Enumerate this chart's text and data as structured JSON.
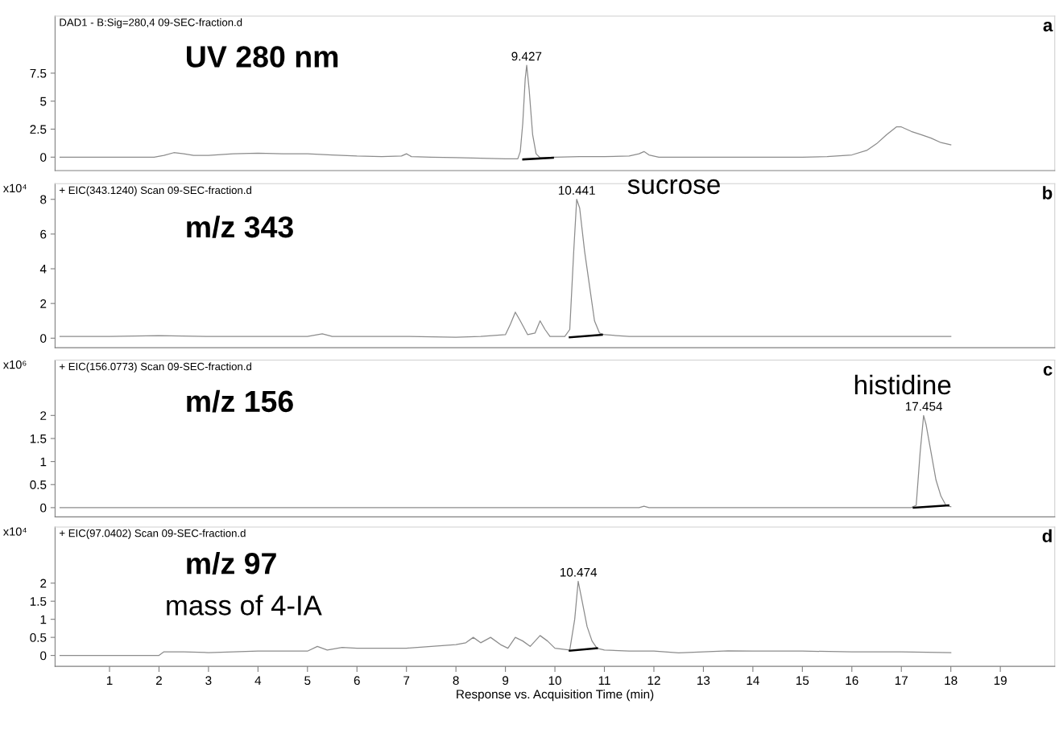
{
  "chart_data": [
    {
      "type": "line",
      "title": "DAD1 - B:Sig=280,4 09-SEC-fraction.d",
      "tick_labels": "y",
      "xlim": [
        -0.1,
        20.1
      ],
      "ylim": [
        -1.2,
        12.6
      ],
      "yticks": [
        0,
        2.5,
        5,
        7.5
      ],
      "grid": false,
      "series": [
        {
          "color": "#8c8c8c",
          "x": [
            0,
            1.9,
            2.1,
            2.3,
            2.5,
            2.7,
            3.0,
            3.5,
            4.0,
            4.5,
            5.0,
            5.5,
            6.0,
            6.5,
            6.9,
            7.0,
            7.1,
            7.5,
            8.0,
            8.5,
            9.0,
            9.25,
            9.3,
            9.35,
            9.4,
            9.43,
            9.48,
            9.55,
            9.62,
            9.7,
            9.8,
            10.0,
            10.5,
            11.0,
            11.5,
            11.7,
            11.8,
            11.9,
            12.1,
            12.5,
            13,
            14,
            15,
            15.5,
            16,
            16.3,
            16.5,
            16.7,
            16.9,
            17.0,
            17.2,
            17.4,
            17.6,
            17.8,
            18.0
          ],
          "values": [
            0,
            0,
            0.15,
            0.4,
            0.3,
            0.15,
            0.15,
            0.3,
            0.35,
            0.3,
            0.3,
            0.2,
            0.1,
            0.05,
            0.1,
            0.3,
            0.05,
            0.0,
            -0.05,
            -0.1,
            -0.15,
            -0.15,
            0.5,
            3,
            7,
            8.2,
            6,
            2,
            0.3,
            -0.05,
            -0.05,
            0,
            0.05,
            0.05,
            0.1,
            0.3,
            0.5,
            0.2,
            0,
            0,
            0,
            0,
            0,
            0.05,
            0.2,
            0.6,
            1.2,
            2.0,
            2.7,
            2.7,
            2.3,
            2.0,
            1.7,
            1.3,
            1.1
          ]
        },
        {
          "color": "#000000",
          "x": [
            9.36,
            9.96
          ],
          "values": [
            -0.2,
            -0.05
          ]
        }
      ],
      "annotations": [
        "UV 280 nm",
        {
          "text": "9.427",
          "x": 9.427,
          "y": 8.2
        },
        "a"
      ]
    },
    {
      "type": "line",
      "title": "+ EIC(343.1240) Scan 09-SEC-fraction.d",
      "ylabel": "x10⁴",
      "tick_labels": "y",
      "xlim": [
        -0.1,
        20.1
      ],
      "ylim": [
        -0.55,
        8.9
      ],
      "yticks": [
        0,
        2,
        4,
        6,
        8
      ],
      "grid": false,
      "series": [
        {
          "color": "#8c8c8c",
          "x": [
            0,
            1,
            2,
            3,
            4,
            5,
            5.3,
            5.5,
            6,
            7,
            8,
            8.5,
            9.0,
            9.1,
            9.2,
            9.3,
            9.45,
            9.6,
            9.7,
            9.8,
            9.9,
            10.2,
            10.3,
            10.38,
            10.44,
            10.5,
            10.6,
            10.7,
            10.8,
            10.9,
            11.0,
            11.5,
            12,
            13,
            14,
            15,
            16,
            17,
            18
          ],
          "values": [
            0.1,
            0.1,
            0.15,
            0.1,
            0.1,
            0.1,
            0.25,
            0.1,
            0.1,
            0.1,
            0.05,
            0.1,
            0.2,
            0.8,
            1.5,
            1.0,
            0.2,
            0.3,
            1.0,
            0.5,
            0.1,
            0.1,
            0.5,
            5,
            8.0,
            7.5,
            5,
            3,
            1.0,
            0.3,
            0.2,
            0.1,
            0.1,
            0.1,
            0.1,
            0.1,
            0.1,
            0.1,
            0.1
          ]
        },
        {
          "color": "#000000",
          "x": [
            10.3,
            10.95
          ],
          "values": [
            0.05,
            0.2
          ]
        }
      ],
      "annotations": [
        "m/z 343",
        {
          "text": "10.441",
          "x": 10.441,
          "y": 8.0
        },
        "sucrose",
        "b"
      ]
    },
    {
      "type": "line",
      "title": "+ EIC(156.0773) Scan 09-SEC-fraction.d",
      "ylabel": "x10⁶",
      "tick_labels": "y",
      "xlim": [
        -0.1,
        20.1
      ],
      "ylim": [
        -0.2,
        3.2
      ],
      "yticks": [
        0,
        0.5,
        1,
        1.5,
        2
      ],
      "grid": false,
      "series": [
        {
          "color": "#8c8c8c",
          "x": [
            0,
            5,
            10,
            11.7,
            11.8,
            11.9,
            15,
            17.2,
            17.3,
            17.38,
            17.45,
            17.5,
            17.6,
            17.7,
            17.8,
            17.9,
            18
          ],
          "values": [
            0,
            0,
            0,
            0,
            0.03,
            0,
            0,
            0,
            0.05,
            1.2,
            2.0,
            1.8,
            1.2,
            0.6,
            0.25,
            0.05,
            0.02
          ]
        },
        {
          "color": "#000000",
          "x": [
            17.25,
            17.95
          ],
          "values": [
            0.0,
            0.05
          ]
        }
      ],
      "annotations": [
        "m/z 156",
        {
          "text": "17.454",
          "x": 17.454,
          "y": 2.0
        },
        "histidine",
        "c"
      ]
    },
    {
      "type": "line",
      "title": "+ EIC(97.0402) Scan 09-SEC-fraction.d",
      "ylabel": "x10⁴",
      "xlabel": "Response vs. Acquisition Time (min)",
      "xlim": [
        -0.1,
        20.1
      ],
      "ylim": [
        -0.3,
        3.55
      ],
      "xticks": [
        1,
        2,
        3,
        4,
        5,
        6,
        7,
        8,
        9,
        10,
        11,
        12,
        13,
        14,
        15,
        16,
        17,
        18,
        19
      ],
      "yticks": [
        0,
        0.5,
        1,
        1.5,
        2
      ],
      "grid": false,
      "series": [
        {
          "color": "#8c8c8c",
          "x": [
            0,
            2.0,
            2.1,
            2.5,
            3,
            3.5,
            4,
            4.5,
            5,
            5.2,
            5.4,
            5.7,
            6,
            6.5,
            7,
            7.5,
            8,
            8.2,
            8.35,
            8.5,
            8.7,
            8.9,
            9.05,
            9.2,
            9.35,
            9.5,
            9.7,
            9.85,
            10.0,
            10.3,
            10.4,
            10.47,
            10.55,
            10.65,
            10.75,
            10.85,
            11,
            11.5,
            12,
            12.5,
            13,
            13.5,
            14,
            15,
            16,
            17,
            18
          ],
          "values": [
            0,
            0,
            0.1,
            0.1,
            0.08,
            0.1,
            0.12,
            0.12,
            0.12,
            0.25,
            0.15,
            0.22,
            0.2,
            0.2,
            0.2,
            0.25,
            0.3,
            0.35,
            0.5,
            0.35,
            0.5,
            0.3,
            0.2,
            0.5,
            0.4,
            0.25,
            0.55,
            0.4,
            0.2,
            0.15,
            1.0,
            2.05,
            1.5,
            0.8,
            0.4,
            0.2,
            0.15,
            0.12,
            0.12,
            0.07,
            0.1,
            0.13,
            0.12,
            0.12,
            0.1,
            0.1,
            0.08
          ]
        },
        {
          "color": "#000000",
          "x": [
            10.3,
            10.85
          ],
          "values": [
            0.13,
            0.2
          ]
        }
      ],
      "annotations": [
        "m/z 97",
        "mass of 4-IA",
        {
          "text": "10.474",
          "x": 10.474,
          "y": 2.05
        },
        "d"
      ]
    }
  ]
}
